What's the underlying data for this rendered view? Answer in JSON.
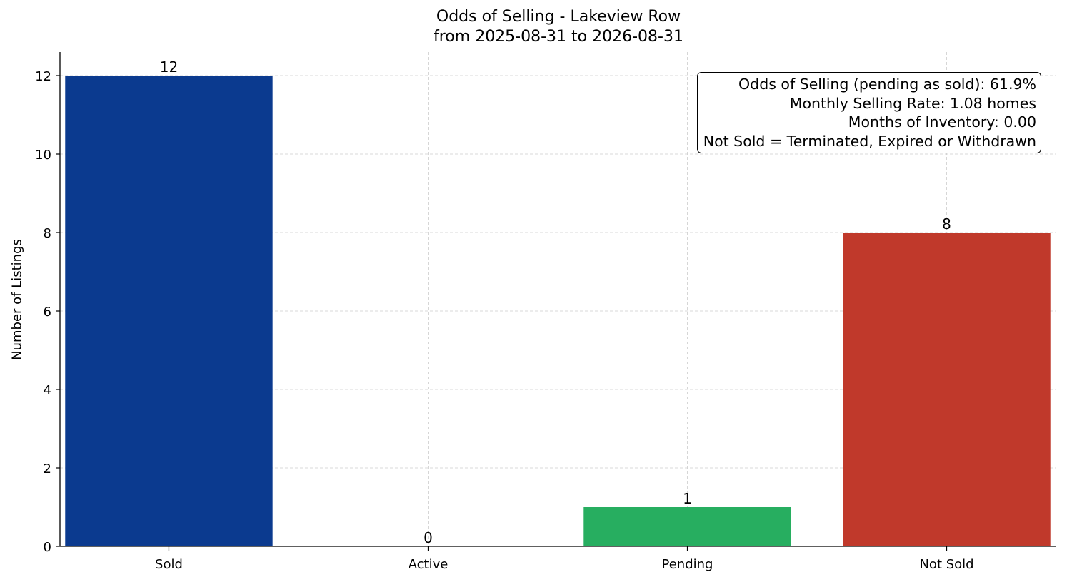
{
  "chart_data": {
    "type": "bar",
    "title": "Odds of Selling - Lakeview Row",
    "subtitle": "from 2025-08-31 to 2026-08-31",
    "xlabel": "",
    "ylabel": "Number of Listings",
    "categories": [
      "Sold",
      "Active",
      "Pending",
      "Not Sold"
    ],
    "values": [
      12,
      0,
      1,
      8
    ],
    "data_labels": [
      "12",
      "0",
      "1",
      "8"
    ],
    "colors": [
      "#0b3a8f",
      "#1f77b4",
      "#27ae60",
      "#c0392b"
    ],
    "ylim": [
      0,
      12.6
    ],
    "yticks": [
      0,
      2,
      4,
      6,
      8,
      10,
      12
    ],
    "grid": true,
    "annotation": {
      "placement": "top-right",
      "lines": [
        "Odds of Selling (pending as sold): 61.9%",
        "Monthly Selling Rate: 1.08 homes",
        "Months of Inventory: 0.00",
        "Not Sold = Terminated, Expired or Withdrawn"
      ]
    }
  }
}
